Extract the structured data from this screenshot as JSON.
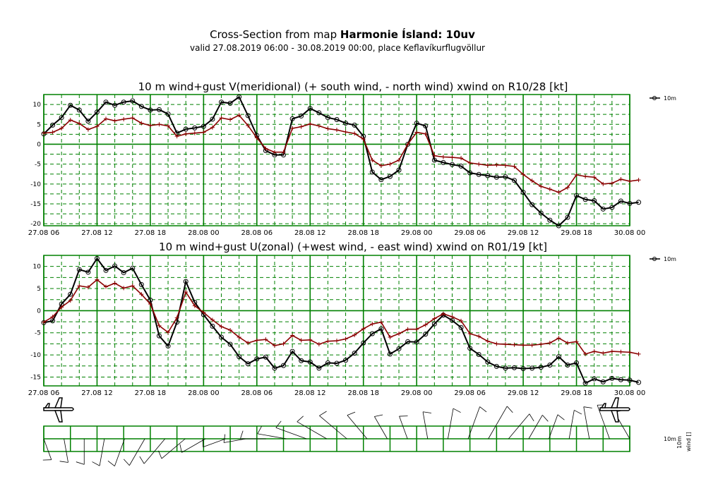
{
  "header": {
    "title_prefix": "Cross-Section from map ",
    "title_bold": "Harmonie Ísland: 10uv",
    "subtitle": "valid 27.08.2019 06:00 - 30.08.2019 00:00, place Keflavíkurflugvöllur"
  },
  "colors": {
    "grid": "#008000",
    "wind": "#000000",
    "gust": "#8b0000"
  },
  "x_ticks": [
    "27.08 06",
    "27.08 12",
    "27.08 18",
    "28.08 00",
    "28.08 06",
    "28.08 12",
    "28.08 18",
    "29.08 00",
    "29.08 06",
    "29.08 12",
    "29.08 18",
    "30.08 00"
  ],
  "chart_data": [
    {
      "type": "line",
      "title": "10 m wind+gust V(meridional) (+ south wind, - north wind) xwind on R10/28 [kt]",
      "x_start": "27.08.2019 06:00",
      "x_step_hours": 1,
      "ylim": [
        -20.5,
        12.5
      ],
      "yticks": [
        -20,
        -15,
        -10,
        -5,
        0,
        5,
        10
      ],
      "legend": "10m",
      "series": [
        {
          "name": "10m",
          "marker": "circle",
          "values": [
            2.6,
            4.8,
            6.7,
            9.8,
            8.6,
            5.8,
            8.1,
            10.6,
            9.8,
            10.6,
            10.9,
            9.5,
            8.6,
            8.7,
            7.6,
            2.8,
            3.8,
            4.1,
            4.5,
            6.3,
            10.6,
            10.3,
            11.9,
            7.2,
            2.2,
            -1.6,
            -2.7,
            -2.7,
            6.4,
            7.1,
            9.0,
            7.9,
            6.7,
            6.2,
            5.3,
            4.8,
            2.0,
            -7.0,
            -8.9,
            -8.1,
            -6.5,
            0.0,
            5.3,
            4.6,
            -4.0,
            -4.6,
            -5.1,
            -5.5,
            -7.2,
            -7.6,
            -7.9,
            -8.3,
            -8.2,
            -9.1,
            -12.1,
            -15.2,
            -17.3,
            -19.1,
            -20.5,
            -18.4,
            -12.9,
            -13.9,
            -14.2,
            -16.3,
            -15.9,
            -14.3,
            -14.9,
            -14.6
          ]
        },
        {
          "name": "",
          "marker": "plus",
          "values": [
            2.8,
            3.0,
            4.0,
            6.1,
            5.2,
            3.7,
            4.5,
            6.4,
            5.9,
            6.3,
            6.6,
            5.3,
            4.7,
            5.0,
            4.6,
            2.0,
            2.6,
            2.8,
            3.0,
            4.2,
            6.6,
            6.2,
            7.3,
            4.7,
            1.6,
            -1.1,
            -2.0,
            -2.0,
            4.0,
            4.4,
            5.1,
            4.6,
            3.9,
            3.6,
            3.1,
            2.7,
            1.3,
            -4.0,
            -5.4,
            -5.0,
            -4.0,
            0.0,
            3.0,
            2.6,
            -2.9,
            -3.2,
            -3.3,
            -3.5,
            -4.7,
            -5.0,
            -5.3,
            -5.2,
            -5.3,
            -5.6,
            -7.6,
            -9.2,
            -10.6,
            -11.3,
            -12.1,
            -10.9,
            -7.7,
            -8.1,
            -8.3,
            -10.0,
            -9.8,
            -8.8,
            -9.3,
            -9.0
          ]
        }
      ]
    },
    {
      "type": "line",
      "title": "10 m wind+gust U(zonal) (+west wind, - east wind) xwind on R01/19 [kt]",
      "x_start": "27.08.2019 06:00",
      "x_step_hours": 1,
      "ylim": [
        -17,
        12.5
      ],
      "yticks": [
        -15,
        -10,
        -5,
        0,
        5,
        10
      ],
      "legend": "10m",
      "series": [
        {
          "name": "10m",
          "marker": "circle",
          "values": [
            -2.7,
            -2.3,
            1.5,
            3.7,
            9.3,
            8.7,
            11.8,
            9.1,
            10.1,
            8.6,
            9.6,
            5.9,
            2.4,
            -5.7,
            -8.0,
            -2.6,
            6.6,
            1.9,
            -0.9,
            -3.5,
            -6.0,
            -7.6,
            -10.4,
            -12.0,
            -10.9,
            -10.5,
            -13.0,
            -12.4,
            -9.2,
            -11.3,
            -11.6,
            -13.0,
            -11.8,
            -11.9,
            -11.2,
            -9.6,
            -7.3,
            -5.2,
            -4.1,
            -9.8,
            -8.6,
            -7.0,
            -7.1,
            -5.3,
            -3.0,
            -1.0,
            -2.2,
            -3.8,
            -8.5,
            -9.9,
            -11.6,
            -12.6,
            -13.0,
            -12.9,
            -13.1,
            -13.0,
            -12.8,
            -12.3,
            -10.4,
            -12.3,
            -11.8,
            -16.4,
            -15.4,
            -16.1,
            -15.3,
            -15.6,
            -15.7,
            -16.2
          ]
        },
        {
          "name": "",
          "marker": "plus",
          "values": [
            -2.6,
            -1.4,
            0.8,
            2.3,
            5.6,
            5.3,
            7.0,
            5.4,
            6.2,
            5.1,
            5.6,
            3.7,
            1.5,
            -3.4,
            -4.9,
            -1.6,
            4.2,
            1.1,
            -0.4,
            -2.1,
            -3.6,
            -4.4,
            -6.0,
            -7.3,
            -6.7,
            -6.5,
            -7.9,
            -7.5,
            -5.6,
            -6.7,
            -6.6,
            -7.6,
            -6.9,
            -6.8,
            -6.4,
            -5.5,
            -4.1,
            -3.0,
            -2.6,
            -6.0,
            -5.2,
            -4.2,
            -4.2,
            -3.2,
            -1.8,
            -0.7,
            -1.4,
            -2.3,
            -5.2,
            -5.8,
            -6.9,
            -7.5,
            -7.6,
            -7.7,
            -7.8,
            -7.8,
            -7.6,
            -7.3,
            -6.2,
            -7.3,
            -7.0,
            -9.8,
            -9.2,
            -9.6,
            -9.2,
            -9.3,
            -9.4,
            -9.8
          ]
        }
      ]
    }
  ],
  "barbs_panel": {
    "legend_a": "10m",
    "legend_b": "10m",
    "legend_c": "wind []",
    "speeds_kt": [
      8,
      10,
      12,
      14,
      16,
      18,
      20,
      18,
      14,
      10,
      8,
      12,
      16,
      20,
      22,
      24,
      18,
      12,
      10,
      14,
      18,
      22,
      26,
      20,
      14,
      12,
      16,
      20,
      24,
      18
    ],
    "directions_deg": [
      160,
      170,
      180,
      190,
      200,
      210,
      220,
      230,
      240,
      250,
      260,
      270,
      280,
      290,
      300,
      310,
      320,
      330,
      340,
      350,
      10,
      20,
      30,
      40,
      30,
      20,
      10,
      350,
      340,
      330
    ]
  },
  "icons": {
    "left": "airplane-icon",
    "right": "airplane-icon"
  }
}
